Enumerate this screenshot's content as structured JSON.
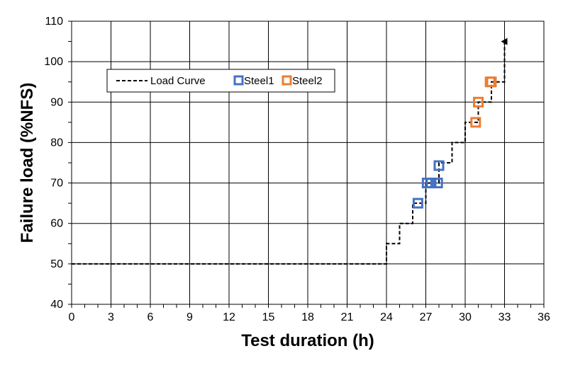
{
  "chart_data": {
    "type": "scatter",
    "title": "",
    "xlabel": "Test duration (h)",
    "ylabel": "Failure load (%NFS)",
    "xlim": [
      0,
      36
    ],
    "ylim": [
      40,
      110
    ],
    "xticks": [
      0,
      3,
      6,
      9,
      12,
      15,
      18,
      21,
      24,
      27,
      30,
      33,
      36
    ],
    "yticks": [
      40,
      50,
      60,
      70,
      80,
      90,
      100,
      110
    ],
    "grid": true,
    "legend_placement": "top-left",
    "series": [
      {
        "name": "Load Curve",
        "kind": "step-line",
        "style": "dashed",
        "color": "#000000",
        "end_marker": "arrow",
        "points": [
          [
            0,
            50
          ],
          [
            24,
            50
          ],
          [
            24,
            55
          ],
          [
            25,
            55
          ],
          [
            25,
            60
          ],
          [
            26,
            60
          ],
          [
            26,
            65
          ],
          [
            27,
            65
          ],
          [
            27,
            70
          ],
          [
            28,
            70
          ],
          [
            28,
            75
          ],
          [
            29,
            75
          ],
          [
            29,
            80
          ],
          [
            30,
            80
          ],
          [
            30,
            85
          ],
          [
            31,
            85
          ],
          [
            31,
            90
          ],
          [
            32,
            90
          ],
          [
            32,
            95
          ],
          [
            33,
            95
          ],
          [
            33,
            105
          ]
        ]
      },
      {
        "name": "Steel1",
        "kind": "marker",
        "marker": "open-square",
        "color": "#4472C4",
        "points": [
          [
            26.4,
            65
          ],
          [
            27.1,
            70
          ],
          [
            27.4,
            70
          ],
          [
            27.9,
            70
          ],
          [
            28.0,
            74.3
          ]
        ]
      },
      {
        "name": "Steel2",
        "kind": "marker",
        "marker": "open-square",
        "color": "#ED7D31",
        "points": [
          [
            30.8,
            85
          ],
          [
            31.0,
            90
          ],
          [
            31.9,
            95
          ],
          [
            32.0,
            95
          ]
        ]
      }
    ]
  }
}
